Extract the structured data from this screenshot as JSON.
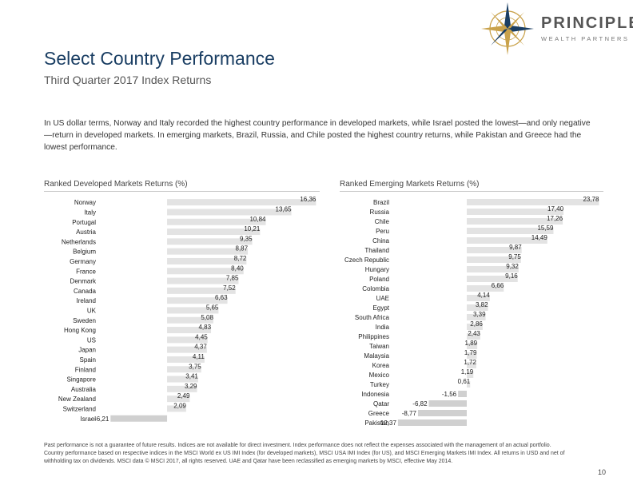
{
  "header": {
    "title": "Select Country Performance",
    "subtitle": "Third Quarter 2017 Index Returns"
  },
  "logo": {
    "name": "PRINCIPLE",
    "tagline": "WEALTH PARTNERS",
    "colors": {
      "gold": "#c9a24b",
      "navy": "#1a3e63"
    }
  },
  "intro": "In US dollar terms, Norway and Italy recorded the highest country performance in developed markets, while Israel posted the lowest—and only negative—return in developed markets. In emerging markets, Brazil, Russia, and Chile posted the highest country returns, while Pakistan and Greece had the lowest performance.",
  "colors": {
    "positive_bar": "#e3e3e3",
    "negative_bar": "#d0d0d0",
    "negative_label": "#9b1c1c",
    "title": "#1a3e63"
  },
  "chart_data": [
    {
      "type": "bar",
      "orientation": "horizontal",
      "title": "Ranked Developed Markets Returns (%)",
      "categories": [
        "Norway",
        "Italy",
        "Portugal",
        "Austria",
        "Netherlands",
        "Belgium",
        "Germany",
        "France",
        "Denmark",
        "Canada",
        "Ireland",
        "UK",
        "Sweden",
        "Hong Kong",
        "US",
        "Japan",
        "Spain",
        "Finland",
        "Singapore",
        "Australia",
        "New Zealand",
        "Switzerland",
        "Israel"
      ],
      "values": [
        16.36,
        13.65,
        10.84,
        10.21,
        9.35,
        8.87,
        8.72,
        8.4,
        7.85,
        7.52,
        6.63,
        5.65,
        5.08,
        4.83,
        4.45,
        4.37,
        4.11,
        3.75,
        3.41,
        3.29,
        2.49,
        2.09,
        -6.21
      ],
      "value_labels": [
        "16,36",
        "13,65",
        "10,84",
        "10,21",
        "9,35",
        "8,87",
        "8,72",
        "8,40",
        "7,85",
        "7,52",
        "6,63",
        "5,65",
        "5,08",
        "4,83",
        "4,45",
        "4,37",
        "4,11",
        "3,75",
        "3,41",
        "3,29",
        "2,49",
        "2,09",
        "-6,21"
      ]
    },
    {
      "type": "bar",
      "orientation": "horizontal",
      "title": "Ranked Emerging Markets Returns (%)",
      "categories": [
        "Brazil",
        "Russia",
        "Chile",
        "Peru",
        "China",
        "Thailand",
        "Czech Republic",
        "Hungary",
        "Poland",
        "Colombia",
        "UAE",
        "Egypt",
        "South Africa",
        "India",
        "Philippines",
        "Taiwan",
        "Malaysia",
        "Korea",
        "Mexico",
        "Turkey",
        "Indonesia",
        "Qatar",
        "Greece",
        "Pakistan"
      ],
      "values": [
        23.78,
        17.4,
        17.26,
        15.59,
        14.49,
        9.87,
        9.75,
        9.32,
        9.16,
        6.66,
        4.14,
        3.82,
        3.39,
        2.86,
        2.43,
        1.89,
        1.79,
        1.72,
        1.19,
        0.61,
        -1.56,
        -6.82,
        -8.77,
        -12.37
      ],
      "value_labels": [
        "23,78",
        "17,40",
        "17,26",
        "15,59",
        "14,49",
        "9,87",
        "9,75",
        "9,32",
        "9,16",
        "6,66",
        "4,14",
        "3,82",
        "3,39",
        "2,86",
        "2,43",
        "1,89",
        "1,79",
        "1,72",
        "1,19",
        "0,61",
        "-1,56",
        "-6,82",
        "-8,77",
        "-12,37"
      ]
    }
  ],
  "footnote": "Past performance is not a guarantee of future results. Indices are not available for direct investment. Index performance does not reflect the expenses associated with the management of an actual portfolio. Country performance based on respective indices in the MSCI World ex US IMI Index (for developed markets), MSCI USA IMI Index (for US), and MSCI Emerging Markets IMI Index. All returns in USD and net of withholding tax on dividends. MSCI data © MSCI 2017, all rights reserved. UAE and Qatar have been reclassified as emerging markets by MSCI, effective May 2014.",
  "page_number": "10"
}
